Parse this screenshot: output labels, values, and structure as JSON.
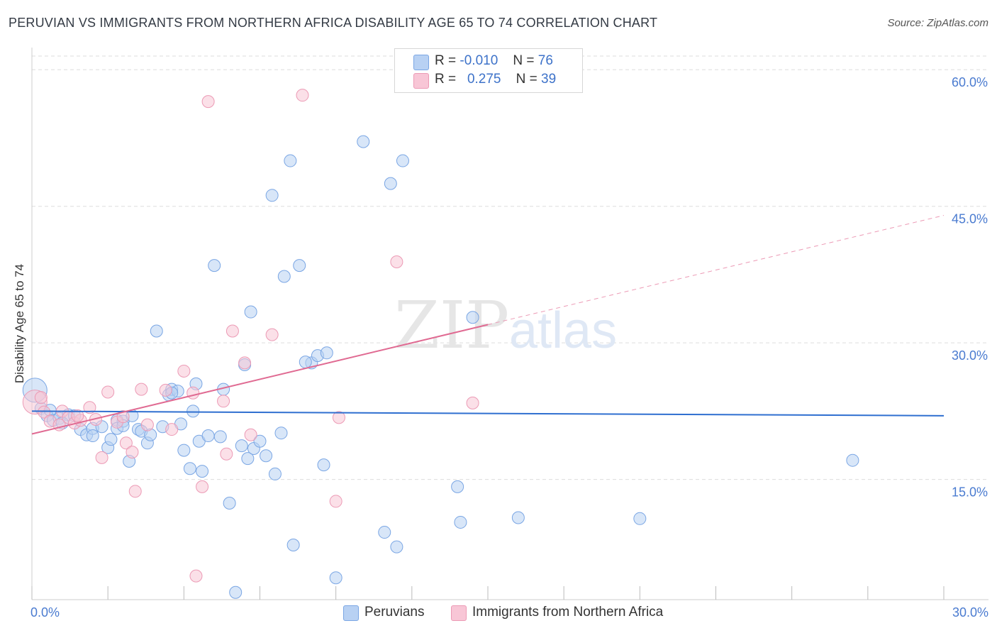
{
  "title": "PERUVIAN VS IMMIGRANTS FROM NORTHERN AFRICA DISABILITY AGE 65 TO 74 CORRELATION CHART",
  "source": "Source: ZipAtlas.com",
  "watermark": {
    "part1": "ZIP",
    "part2": "atlas"
  },
  "colors": {
    "blue_fill": "#b8d1f3",
    "blue_stroke": "#7aa6e4",
    "blue_line": "#2f6fd0",
    "pink_fill": "#f8c6d6",
    "pink_stroke": "#ec9ab5",
    "pink_line": "#e06a92",
    "axis_text": "#4a7bd0",
    "grid": "#dddddd"
  },
  "legend_top": [
    {
      "r_label": "R =",
      "r_value": "-0.010",
      "n_label": "N =",
      "n_value": "76",
      "series": "Peruvians"
    },
    {
      "r_label": "R =",
      "r_value": "0.275",
      "n_label": "N =",
      "n_value": "39",
      "series": "Immigrants from Northern Africa"
    }
  ],
  "chart_data": {
    "type": "scatter",
    "title": "PERUVIAN VS IMMIGRANTS FROM NORTHERN AFRICA DISABILITY AGE 65 TO 74 CORRELATION CHART",
    "xlabel": "",
    "ylabel": "Disability Age 65 to 74",
    "xlim": [
      0,
      30
    ],
    "ylim": [
      0,
      60
    ],
    "x_tick_labels": [
      "0.0%",
      "30.0%"
    ],
    "y_ticks": [
      15,
      30,
      45,
      60
    ],
    "y_tick_labels": [
      "15.0%",
      "30.0%",
      "45.0%",
      "60.0%"
    ],
    "grid": true,
    "series": [
      {
        "name": "Peruvians",
        "color": "#b8d1f3",
        "trend": {
          "x": [
            0,
            30
          ],
          "y": [
            22.5,
            22.0
          ],
          "dashed_from_x": null
        },
        "points": [
          {
            "x": 0.1,
            "y": 24.8,
            "big": true
          },
          {
            "x": 0.3,
            "y": 22.8
          },
          {
            "x": 0.5,
            "y": 22.0
          },
          {
            "x": 0.6,
            "y": 22.6
          },
          {
            "x": 0.7,
            "y": 21.5
          },
          {
            "x": 0.9,
            "y": 21.7
          },
          {
            "x": 1.2,
            "y": 22.1
          },
          {
            "x": 1.4,
            "y": 22.0
          },
          {
            "x": 1.6,
            "y": 20.5
          },
          {
            "x": 1.8,
            "y": 19.9
          },
          {
            "x": 2.0,
            "y": 20.6
          },
          {
            "x": 2.0,
            "y": 19.8
          },
          {
            "x": 2.3,
            "y": 20.8
          },
          {
            "x": 2.5,
            "y": 18.5
          },
          {
            "x": 2.6,
            "y": 19.4
          },
          {
            "x": 2.8,
            "y": 21.5
          },
          {
            "x": 2.8,
            "y": 20.6
          },
          {
            "x": 3.0,
            "y": 21.4
          },
          {
            "x": 3.0,
            "y": 20.9
          },
          {
            "x": 3.2,
            "y": 17.0
          },
          {
            "x": 3.3,
            "y": 22.0
          },
          {
            "x": 3.5,
            "y": 20.5
          },
          {
            "x": 3.6,
            "y": 20.3
          },
          {
            "x": 3.8,
            "y": 19.0
          },
          {
            "x": 3.9,
            "y": 19.9
          },
          {
            "x": 4.1,
            "y": 31.3
          },
          {
            "x": 4.3,
            "y": 20.8
          },
          {
            "x": 4.5,
            "y": 24.3
          },
          {
            "x": 4.6,
            "y": 24.9
          },
          {
            "x": 4.8,
            "y": 24.7
          },
          {
            "x": 4.9,
            "y": 21.1
          },
          {
            "x": 5.0,
            "y": 18.2
          },
          {
            "x": 5.2,
            "y": 16.2
          },
          {
            "x": 5.3,
            "y": 22.5
          },
          {
            "x": 5.4,
            "y": 25.5
          },
          {
            "x": 5.5,
            "y": 19.2
          },
          {
            "x": 5.6,
            "y": 15.9
          },
          {
            "x": 5.8,
            "y": 19.8
          },
          {
            "x": 6.0,
            "y": 38.5
          },
          {
            "x": 6.2,
            "y": 19.7
          },
          {
            "x": 6.3,
            "y": 24.9
          },
          {
            "x": 6.5,
            "y": 12.4
          },
          {
            "x": 6.7,
            "y": 2.6
          },
          {
            "x": 6.9,
            "y": 18.7
          },
          {
            "x": 7.0,
            "y": 27.6
          },
          {
            "x": 7.1,
            "y": 17.3
          },
          {
            "x": 7.2,
            "y": 33.4
          },
          {
            "x": 7.3,
            "y": 18.4
          },
          {
            "x": 7.5,
            "y": 19.2
          },
          {
            "x": 7.7,
            "y": 17.6
          },
          {
            "x": 7.9,
            "y": 46.2
          },
          {
            "x": 8.0,
            "y": 15.6
          },
          {
            "x": 8.2,
            "y": 20.1
          },
          {
            "x": 8.3,
            "y": 37.3
          },
          {
            "x": 8.5,
            "y": 50.0
          },
          {
            "x": 8.6,
            "y": 7.8
          },
          {
            "x": 8.8,
            "y": 38.5
          },
          {
            "x": 9.2,
            "y": 27.8
          },
          {
            "x": 9.4,
            "y": 28.6
          },
          {
            "x": 9.6,
            "y": 16.6
          },
          {
            "x": 9.7,
            "y": 28.9
          },
          {
            "x": 10.0,
            "y": 4.2
          },
          {
            "x": 10.9,
            "y": 52.1
          },
          {
            "x": 11.6,
            "y": 9.2
          },
          {
            "x": 11.8,
            "y": 47.5
          },
          {
            "x": 12.0,
            "y": 7.6
          },
          {
            "x": 12.2,
            "y": 50.0
          },
          {
            "x": 14.0,
            "y": 14.2
          },
          {
            "x": 14.1,
            "y": 10.3
          },
          {
            "x": 14.5,
            "y": 32.8
          },
          {
            "x": 16.0,
            "y": 10.8
          },
          {
            "x": 20.0,
            "y": 10.7
          },
          {
            "x": 27.0,
            "y": 17.1
          },
          {
            "x": 9.0,
            "y": 27.9
          },
          {
            "x": 1.0,
            "y": 21.2
          },
          {
            "x": 4.6,
            "y": 24.5
          }
        ]
      },
      {
        "name": "Immigrants from Northern Africa",
        "color": "#f8c6d6",
        "trend": {
          "x": [
            0,
            30
          ],
          "y": [
            20.0,
            44.0
          ],
          "dashed_from_x": 15.0
        },
        "points": [
          {
            "x": 0.1,
            "y": 23.5,
            "big": true
          },
          {
            "x": 0.4,
            "y": 22.4
          },
          {
            "x": 0.6,
            "y": 21.4
          },
          {
            "x": 0.9,
            "y": 21.0
          },
          {
            "x": 1.0,
            "y": 22.5
          },
          {
            "x": 1.2,
            "y": 21.8
          },
          {
            "x": 1.4,
            "y": 21.2
          },
          {
            "x": 1.6,
            "y": 21.5
          },
          {
            "x": 1.9,
            "y": 22.9
          },
          {
            "x": 2.1,
            "y": 21.6
          },
          {
            "x": 2.3,
            "y": 17.4
          },
          {
            "x": 2.5,
            "y": 24.6
          },
          {
            "x": 2.8,
            "y": 21.3
          },
          {
            "x": 3.0,
            "y": 21.9
          },
          {
            "x": 3.1,
            "y": 19.0
          },
          {
            "x": 3.3,
            "y": 18.0
          },
          {
            "x": 3.4,
            "y": 13.7
          },
          {
            "x": 3.6,
            "y": 24.9
          },
          {
            "x": 3.8,
            "y": 21.0
          },
          {
            "x": 4.4,
            "y": 24.8
          },
          {
            "x": 4.6,
            "y": 20.5
          },
          {
            "x": 5.0,
            "y": 26.9
          },
          {
            "x": 5.3,
            "y": 24.5
          },
          {
            "x": 5.4,
            "y": 4.4
          },
          {
            "x": 5.6,
            "y": 14.2
          },
          {
            "x": 5.8,
            "y": 56.5
          },
          {
            "x": 6.3,
            "y": 23.6
          },
          {
            "x": 6.4,
            "y": 17.8
          },
          {
            "x": 6.6,
            "y": 31.3
          },
          {
            "x": 7.0,
            "y": 27.8
          },
          {
            "x": 7.2,
            "y": 19.9
          },
          {
            "x": 7.9,
            "y": 30.9
          },
          {
            "x": 8.9,
            "y": 57.2
          },
          {
            "x": 10.0,
            "y": 12.6
          },
          {
            "x": 10.1,
            "y": 21.8
          },
          {
            "x": 12.0,
            "y": 38.9
          },
          {
            "x": 14.5,
            "y": 23.4
          },
          {
            "x": 0.3,
            "y": 24.0
          },
          {
            "x": 1.5,
            "y": 22.0
          }
        ]
      }
    ]
  }
}
